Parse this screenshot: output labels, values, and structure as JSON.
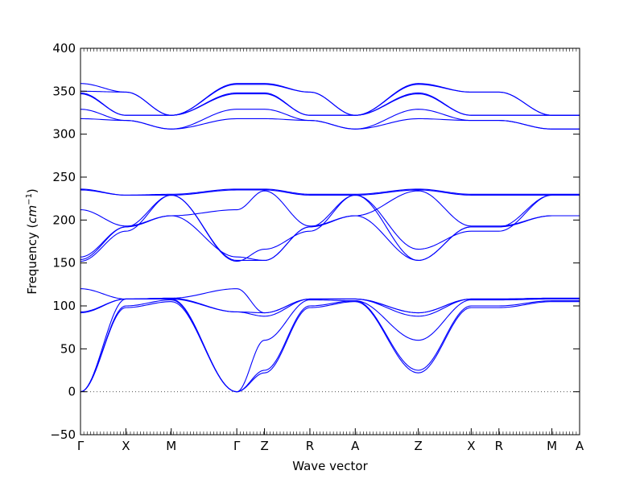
{
  "chart_data": {
    "type": "line",
    "title": "",
    "xlabel": "Wave vector",
    "ylabel_prefix": "Frequency (",
    "ylabel_unit_base": "cm",
    "ylabel_unit_exp": "−1",
    "ylabel_suffix": ")",
    "ylim": [
      -50,
      400
    ],
    "yticks": [
      -50,
      0,
      50,
      100,
      150,
      200,
      250,
      300,
      350,
      400
    ],
    "grid": false,
    "zero_line": true,
    "line_color": "#0000ff",
    "x": [
      0,
      0.9,
      1.8,
      3.1,
      3.65,
      4.55,
      5.45,
      6.7,
      7.75,
      8.3,
      9.35,
      9.9
    ],
    "xticks": [
      {
        "x": 0,
        "label": "Γ"
      },
      {
        "x": 0.9,
        "label": "X"
      },
      {
        "x": 1.8,
        "label": "M"
      },
      {
        "x": 3.1,
        "label": "Γ"
      },
      {
        "x": 3.65,
        "label": "Z"
      },
      {
        "x": 4.55,
        "label": "R"
      },
      {
        "x": 5.45,
        "label": "A"
      },
      {
        "x": 6.7,
        "label": "Z"
      },
      {
        "x": 7.75,
        "label": "X"
      },
      {
        "x": 8.3,
        "label": "R"
      },
      {
        "x": 9.35,
        "label": "M"
      },
      {
        "x": 9.9,
        "label": "A"
      }
    ],
    "series": [
      {
        "values": [
          0,
          98,
          105,
          0,
          22,
          98,
          105,
          22,
          98,
          98,
          105,
          105
        ]
      },
      {
        "values": [
          0,
          100,
          107,
          0,
          25,
          100,
          106,
          25,
          100,
          100,
          106,
          106
        ]
      },
      {
        "values": [
          0,
          108,
          108,
          0,
          60,
          107,
          106,
          60,
          107,
          107,
          108,
          108
        ]
      },
      {
        "values": [
          92,
          108,
          108,
          93,
          88,
          108,
          108,
          88,
          108,
          108,
          108,
          108
        ]
      },
      {
        "values": [
          93,
          108,
          109,
          93,
          92,
          108,
          108,
          92,
          108,
          108,
          109,
          109
        ]
      },
      {
        "values": [
          120,
          108,
          109,
          120,
          92,
          108,
          108,
          92,
          108,
          108,
          109,
          109
        ]
      },
      {
        "values": [
          152,
          187,
          229,
          152,
          166,
          187,
          229,
          166,
          187,
          187,
          229,
          229
        ]
      },
      {
        "values": [
          154,
          192,
          229,
          153,
          153,
          192,
          229,
          153,
          192,
          192,
          229,
          229
        ]
      },
      {
        "values": [
          157,
          192,
          205,
          157,
          153,
          192,
          205,
          153,
          192,
          192,
          205,
          205
        ]
      },
      {
        "values": [
          212,
          193,
          205,
          212,
          234,
          193,
          205,
          234,
          193,
          193,
          205,
          205
        ]
      },
      {
        "values": [
          235,
          229,
          229,
          235,
          235,
          229,
          229,
          235,
          229,
          229,
          229,
          229
        ]
      },
      {
        "values": [
          236,
          229,
          230,
          236,
          236,
          230,
          230,
          236,
          230,
          230,
          230,
          230
        ]
      },
      {
        "values": [
          318,
          316,
          306,
          318,
          318,
          316,
          306,
          318,
          316,
          316,
          306,
          306
        ]
      },
      {
        "values": [
          329,
          316,
          306,
          329,
          329,
          316,
          306,
          329,
          316,
          316,
          306,
          306
        ]
      },
      {
        "values": [
          347,
          322,
          322,
          347,
          347,
          322,
          322,
          347,
          322,
          322,
          322,
          322
        ]
      },
      {
        "values": [
          348,
          322,
          322,
          348,
          348,
          322,
          322,
          348,
          322,
          322,
          322,
          322
        ]
      },
      {
        "values": [
          350,
          349,
          322,
          358,
          358,
          349,
          322,
          358,
          349,
          349,
          322,
          322
        ]
      },
      {
        "values": [
          359,
          349,
          322,
          359,
          359,
          349,
          322,
          359,
          349,
          349,
          322,
          322
        ]
      }
    ]
  }
}
